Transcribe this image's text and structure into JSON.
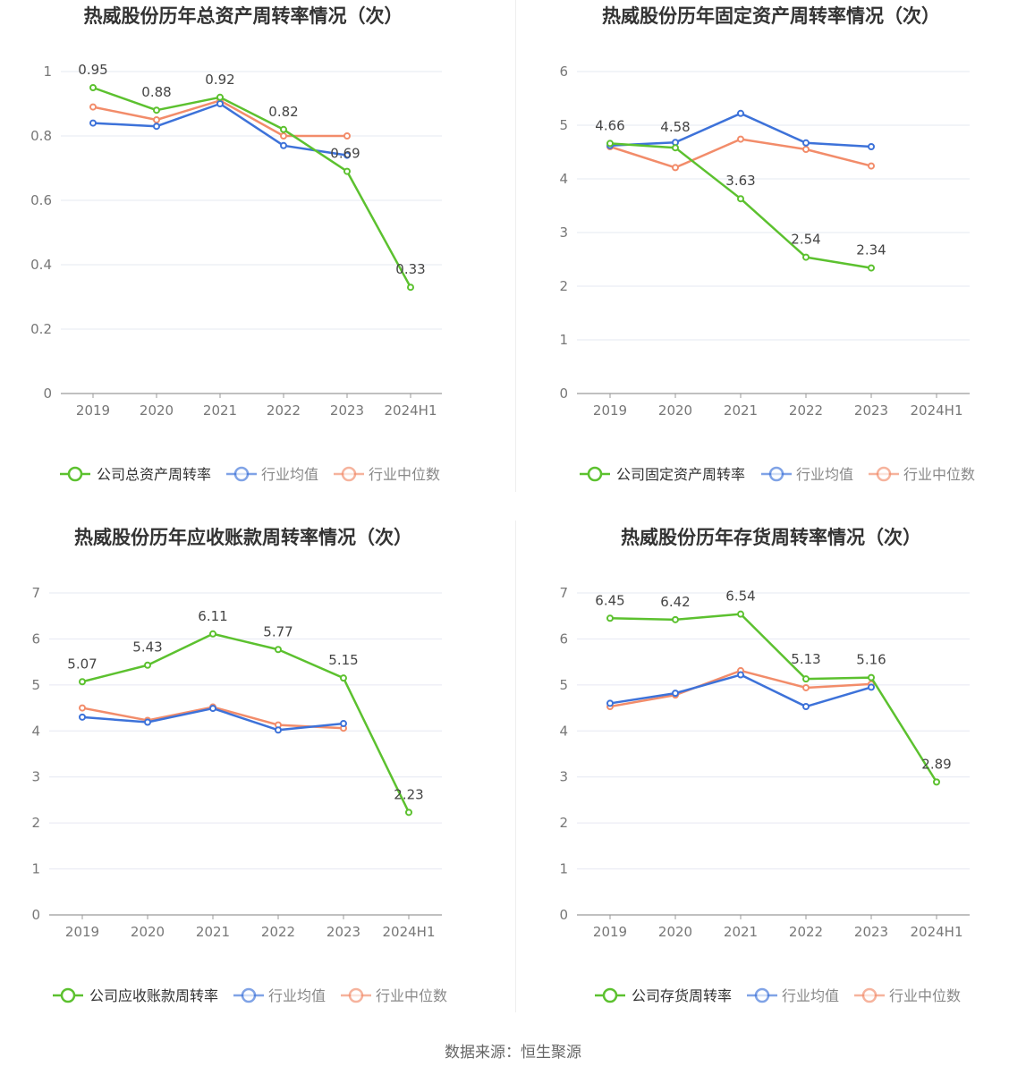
{
  "colors": {
    "company": "#5cc12f",
    "industry_avg": "#3d72d9",
    "industry_median": "#f28c6a",
    "grid": "#e6e8f2",
    "axis": "#9a9a9a",
    "tick_text": "#777777",
    "label_text": "#444444",
    "title_text": "#333333"
  },
  "chart_data": [
    {
      "type": "line",
      "title": "热威股份历年总资产周转率情况（次）",
      "categories": [
        "2019",
        "2020",
        "2021",
        "2022",
        "2023",
        "2024H1"
      ],
      "ylim": [
        0,
        1
      ],
      "yticks": [
        0,
        0.2,
        0.4,
        0.6,
        0.8,
        1
      ],
      "ytick_labels": [
        "0",
        "0.2",
        "0.4",
        "0.6",
        "0.8",
        "1"
      ],
      "series": [
        {
          "name": "公司总资产周转率",
          "role": "company",
          "values": [
            0.95,
            0.88,
            0.92,
            0.82,
            0.69,
            0.33
          ],
          "labels": [
            "0.95",
            "0.88",
            "0.92",
            "0.82",
            "0.69",
            "0.33"
          ]
        },
        {
          "name": "行业均值",
          "role": "industry_avg",
          "values": [
            0.84,
            0.83,
            0.9,
            0.77,
            0.74,
            null
          ]
        },
        {
          "name": "行业中位数",
          "role": "industry_median",
          "values": [
            0.89,
            0.85,
            0.91,
            0.8,
            0.8,
            null
          ]
        }
      ]
    },
    {
      "type": "line",
      "title": "热威股份历年固定资产周转率情况（次）",
      "categories": [
        "2019",
        "2020",
        "2021",
        "2022",
        "2023",
        "2024H1"
      ],
      "ylim": [
        0,
        6
      ],
      "yticks": [
        0,
        1,
        2,
        3,
        4,
        5,
        6
      ],
      "ytick_labels": [
        "0",
        "1",
        "2",
        "3",
        "4",
        "5",
        "6"
      ],
      "series": [
        {
          "name": "公司固定资产周转率",
          "role": "company",
          "values": [
            4.66,
            4.58,
            3.63,
            2.54,
            2.34,
            null
          ],
          "labels": [
            "4.66",
            "4.58",
            "3.63",
            "2.54",
            "2.34",
            null
          ]
        },
        {
          "name": "行业均值",
          "role": "industry_avg",
          "values": [
            4.62,
            4.68,
            5.22,
            4.67,
            4.6,
            null
          ]
        },
        {
          "name": "行业中位数",
          "role": "industry_median",
          "values": [
            4.6,
            4.21,
            4.74,
            4.55,
            4.24,
            null
          ]
        }
      ]
    },
    {
      "type": "line",
      "title": "热威股份历年应收账款周转率情况（次）",
      "categories": [
        "2019",
        "2020",
        "2021",
        "2022",
        "2023",
        "2024H1"
      ],
      "ylim": [
        0,
        7
      ],
      "yticks": [
        0,
        1,
        2,
        3,
        4,
        5,
        6,
        7
      ],
      "ytick_labels": [
        "0",
        "1",
        "2",
        "3",
        "4",
        "5",
        "6",
        "7"
      ],
      "series": [
        {
          "name": "公司应收账款周转率",
          "role": "company",
          "values": [
            5.07,
            5.43,
            6.11,
            5.77,
            5.15,
            2.23
          ],
          "labels": [
            "5.07",
            "5.43",
            "6.11",
            "5.77",
            "5.15",
            "2.23"
          ]
        },
        {
          "name": "行业均值",
          "role": "industry_avg",
          "values": [
            4.3,
            4.19,
            4.49,
            4.02,
            4.16,
            null
          ]
        },
        {
          "name": "行业中位数",
          "role": "industry_median",
          "values": [
            4.5,
            4.23,
            4.52,
            4.13,
            4.06,
            null
          ]
        }
      ]
    },
    {
      "type": "line",
      "title": "热威股份历年存货周转率情况（次）",
      "categories": [
        "2019",
        "2020",
        "2021",
        "2022",
        "2023",
        "2024H1"
      ],
      "ylim": [
        0,
        7
      ],
      "yticks": [
        0,
        1,
        2,
        3,
        4,
        5,
        6,
        7
      ],
      "ytick_labels": [
        "0",
        "1",
        "2",
        "3",
        "4",
        "5",
        "6",
        "7"
      ],
      "series": [
        {
          "name": "公司存货周转率",
          "role": "company",
          "values": [
            6.45,
            6.42,
            6.54,
            5.13,
            5.16,
            2.89
          ],
          "labels": [
            "6.45",
            "6.42",
            "6.54",
            "5.13",
            "5.16",
            "2.89"
          ]
        },
        {
          "name": "行业均值",
          "role": "industry_avg",
          "values": [
            4.6,
            4.82,
            5.22,
            4.53,
            4.95,
            null
          ]
        },
        {
          "name": "行业中位数",
          "role": "industry_median",
          "values": [
            4.53,
            4.78,
            5.31,
            4.94,
            5.02,
            null
          ]
        }
      ]
    }
  ],
  "footer": {
    "source": "数据来源：恒生聚源"
  }
}
